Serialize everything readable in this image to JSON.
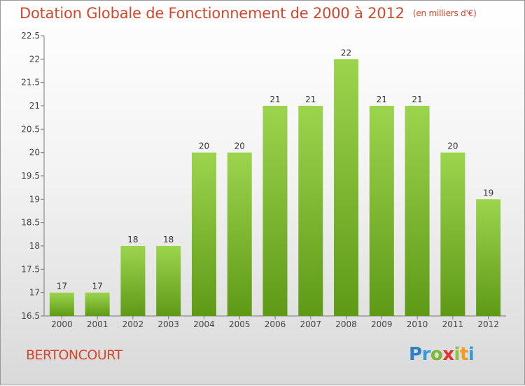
{
  "header": {
    "title": "Dotation Globale de Fonctionnement de 2000 à 2012",
    "unit": "(en milliers d'€)"
  },
  "footer": {
    "city": "BERTONCOURT",
    "logo": "Proxiti"
  },
  "colors": {
    "title": "#d4462a",
    "bar_top": "#9dd44e",
    "bar_bottom": "#5e9a16"
  },
  "chart_data": {
    "type": "bar",
    "categories": [
      "2000",
      "2001",
      "2002",
      "2003",
      "2004",
      "2005",
      "2006",
      "2007",
      "2008",
      "2009",
      "2010",
      "2011",
      "2012"
    ],
    "values": [
      17,
      17,
      18,
      18,
      20,
      20,
      21,
      21,
      22,
      21,
      21,
      20,
      19
    ],
    "ylim": [
      16.5,
      22.5
    ],
    "yticks": [
      "16.5",
      "17",
      "17.5",
      "18",
      "18.5",
      "19",
      "19.5",
      "20",
      "20.5",
      "21",
      "21.5",
      "22",
      "22.5"
    ],
    "grid": false,
    "title": "Dotation Globale de Fonctionnement de 2000 à 2012",
    "xlabel": "",
    "ylabel": ""
  }
}
